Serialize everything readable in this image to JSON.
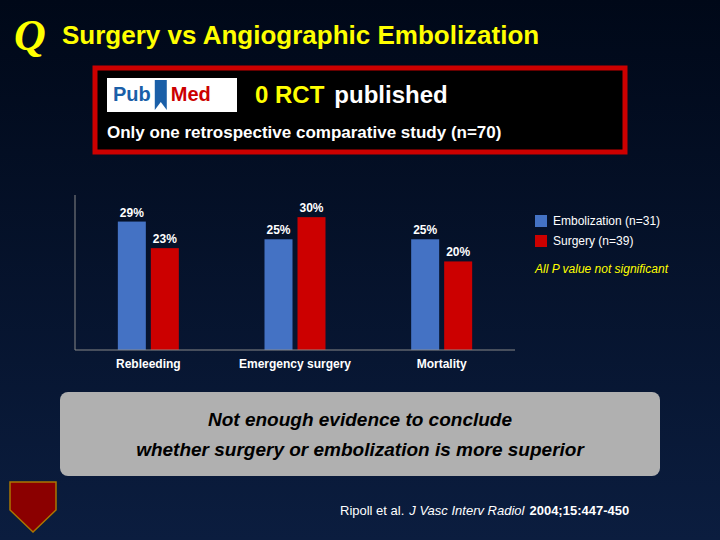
{
  "chart_data": {
    "type": "bar",
    "title": "Surgery vs Angiographic Embolization",
    "categories": [
      "Rebleeding",
      "Emergency surgery",
      "Mortality"
    ],
    "series": [
      {
        "name": "Embolization (n=31)",
        "color": "#4472C4",
        "values": [
          29,
          25,
          25
        ],
        "value_labels": [
          "29%",
          "25%",
          "25%"
        ]
      },
      {
        "name": "Surgery (n=39)",
        "color": "#CC0000",
        "values": [
          23,
          30,
          20
        ],
        "value_labels": [
          "23%",
          "30%",
          "20%"
        ]
      }
    ],
    "ylim": [
      0,
      35
    ],
    "tick_labels": "x",
    "grid": false,
    "legend": "right",
    "data_labels": true,
    "annotations": [
      "Q",
      "Pub",
      "Med",
      "0 RCT",
      "published",
      "Only one retrospective comparative study (n=70)",
      "All P value not significant",
      "Not enough evidence to conclude",
      "whether surgery or embolization is more superior",
      "Ripoll et al.",
      "J Vasc Interv Radiol",
      "2004;15:447-450"
    ]
  }
}
